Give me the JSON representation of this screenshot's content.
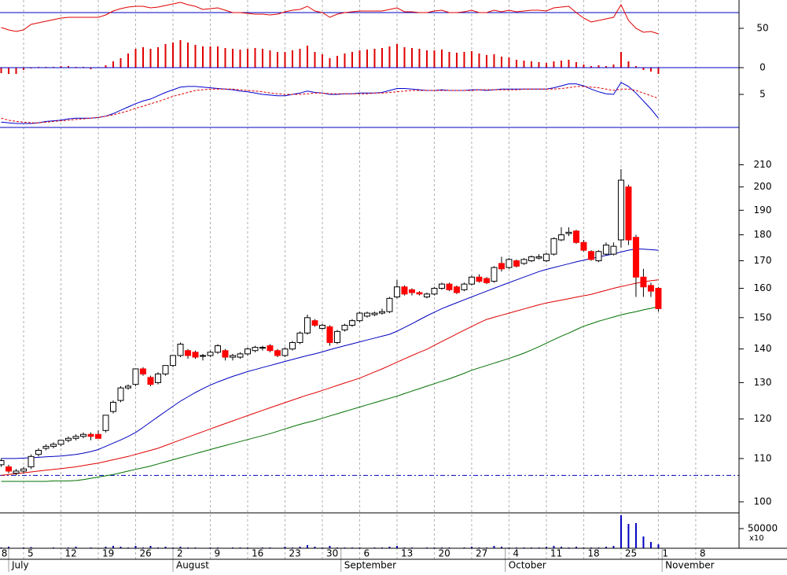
{
  "chart_data": [
    {
      "type": "oscillator",
      "ylim": [
        0,
        86
      ],
      "yticks": [
        0,
        50
      ],
      "reference_line": 70,
      "line_color": "#e00000",
      "bar_color": "#e00000",
      "ref_color": "#0000c0",
      "line": [
        51,
        48,
        46,
        48,
        55,
        57,
        59,
        61,
        63,
        64,
        64,
        64,
        64,
        64,
        67,
        72,
        75,
        77,
        78,
        78,
        76,
        77,
        79,
        81,
        83,
        80,
        78,
        74,
        75,
        76,
        73,
        70,
        70,
        69,
        68,
        68,
        67,
        68,
        71,
        73,
        74,
        78,
        72,
        70,
        64,
        68,
        70,
        71,
        72,
        72,
        72,
        72,
        74,
        76,
        71,
        71,
        70,
        70,
        72,
        73,
        70,
        70,
        71,
        73,
        70,
        70,
        73,
        71,
        73,
        71,
        72,
        73,
        73,
        72,
        76,
        77,
        78,
        70,
        63,
        58,
        60,
        62,
        64,
        80,
        60,
        50,
        45,
        46,
        43
      ],
      "bars": [
        -7,
        -8,
        -8,
        -3,
        -1,
        1,
        1,
        1,
        2,
        2,
        1,
        1,
        -2,
        0,
        3,
        8,
        12,
        18,
        24,
        26,
        24,
        26,
        30,
        32,
        35,
        32,
        29,
        27,
        27,
        27,
        25,
        24,
        23,
        24,
        25,
        24,
        22,
        20,
        20,
        22,
        24,
        28,
        20,
        17,
        12,
        15,
        18,
        20,
        22,
        23,
        24,
        25,
        27,
        30,
        26,
        25,
        24,
        22,
        22,
        23,
        20,
        19,
        20,
        21,
        18,
        16,
        17,
        14,
        13,
        10,
        9,
        8,
        7,
        6,
        8,
        9,
        10,
        7,
        4,
        2,
        3,
        2,
        4,
        20,
        8,
        2,
        -3,
        -5,
        -8
      ]
    },
    {
      "type": "macd",
      "ylim": [
        0,
        9.05
      ],
      "yticks": [
        5
      ],
      "series": [
        {
          "color": "#0000d0",
          "dashed": false,
          "values": [
            0.8,
            0.7,
            0.6,
            0.6,
            0.6,
            0.7,
            0.9,
            1.0,
            1.1,
            1.3,
            1.4,
            1.4,
            1.4,
            1.5,
            1.7,
            2.1,
            2.6,
            3.1,
            3.6,
            4.0,
            4.3,
            4.8,
            5.3,
            5.7,
            6.1,
            6.2,
            6.2,
            6.1,
            6.0,
            5.9,
            5.8,
            5.7,
            5.5,
            5.4,
            5.2,
            5.0,
            4.9,
            4.8,
            4.8,
            5.0,
            5.2,
            5.5,
            5.3,
            5.2,
            5.0,
            5.0,
            5.1,
            5.1,
            5.2,
            5.2,
            5.2,
            5.3,
            5.6,
            5.9,
            5.9,
            5.8,
            5.7,
            5.6,
            5.6,
            5.7,
            5.6,
            5.6,
            5.6,
            5.7,
            5.7,
            5.6,
            5.7,
            5.8,
            5.8,
            5.8,
            5.8,
            5.8,
            5.8,
            5.8,
            6.0,
            6.3,
            6.6,
            6.6,
            6.3,
            5.8,
            5.4,
            5.1,
            5.0,
            6.8,
            6.2,
            5.2,
            4.0,
            2.8,
            1.4
          ]
        },
        {
          "color": "#e00000",
          "dashed": true,
          "values": [
            1.4,
            1.1,
            0.9,
            0.8,
            0.7,
            0.7,
            0.8,
            0.9,
            1.0,
            1.1,
            1.2,
            1.3,
            1.4,
            1.5,
            1.7,
            1.9,
            2.2,
            2.5,
            2.9,
            3.2,
            3.6,
            3.9,
            4.3,
            4.7,
            5.0,
            5.3,
            5.6,
            5.7,
            5.8,
            5.8,
            5.8,
            5.8,
            5.7,
            5.6,
            5.5,
            5.4,
            5.2,
            5.1,
            5.0,
            5.0,
            5.0,
            5.1,
            5.2,
            5.2,
            5.1,
            5.1,
            5.1,
            5.1,
            5.1,
            5.1,
            5.2,
            5.2,
            5.3,
            5.4,
            5.5,
            5.6,
            5.6,
            5.6,
            5.6,
            5.6,
            5.6,
            5.6,
            5.6,
            5.6,
            5.7,
            5.7,
            5.7,
            5.7,
            5.7,
            5.7,
            5.8,
            5.8,
            5.8,
            5.8,
            5.8,
            5.9,
            6.0,
            6.2,
            6.2,
            6.1,
            6.0,
            5.8,
            5.6,
            5.8,
            5.8,
            5.6,
            5.2,
            4.8,
            4.4
          ]
        }
      ]
    },
    {
      "type": "candlestick",
      "log_scale": true,
      "ylim": [
        97.6,
        228
      ],
      "yticks": [
        100,
        110,
        120,
        130,
        140,
        150,
        160,
        170,
        180,
        190,
        200,
        210
      ],
      "xlim": [
        -0.16,
        98.8
      ],
      "xticks": [
        {
          "value": -0.5,
          "label": "8"
        },
        {
          "value": 3,
          "label": "5"
        },
        {
          "value": 8,
          "label": "12"
        },
        {
          "value": 13,
          "label": "19"
        },
        {
          "value": 18,
          "label": "26"
        },
        {
          "value": 23,
          "label": "2"
        },
        {
          "value": 28,
          "label": "9"
        },
        {
          "value": 33,
          "label": "16"
        },
        {
          "value": 38,
          "label": "23"
        },
        {
          "value": 43,
          "label": "30"
        },
        {
          "value": 48,
          "label": "6"
        },
        {
          "value": 53,
          "label": "13"
        },
        {
          "value": 58,
          "label": "20"
        },
        {
          "value": 63,
          "label": "27"
        },
        {
          "value": 68,
          "label": "4"
        },
        {
          "value": 73,
          "label": "11"
        },
        {
          "value": 78,
          "label": "18"
        },
        {
          "value": 83,
          "label": "25"
        },
        {
          "value": 88,
          "label": "1"
        },
        {
          "value": 93,
          "label": "8"
        }
      ],
      "month_ticks": [
        {
          "value": 1,
          "label": "July"
        },
        {
          "value": 23,
          "label": "August"
        },
        {
          "value": 45.5,
          "label": "September"
        },
        {
          "value": 67.5,
          "label": "October"
        },
        {
          "value": 88.5,
          "label": "November"
        }
      ],
      "grid": true,
      "up_color": "#ffffff",
      "down_color": "#ff0000",
      "reference_line": 106,
      "ref_color": "#0000c0",
      "open": [
        108.5,
        108,
        106.5,
        107,
        108,
        111,
        112.5,
        113,
        113.5,
        114.5,
        115,
        115.5,
        116,
        116,
        117,
        122,
        125,
        128.5,
        129.5,
        134,
        131.5,
        130,
        132.5,
        135,
        138,
        139.5,
        139,
        138,
        138,
        139,
        139.5,
        137.5,
        137.5,
        138.5,
        139.5,
        140.5,
        141,
        139.5,
        138,
        140,
        142,
        145,
        149,
        146.5,
        147,
        142,
        146,
        147.5,
        149,
        150.5,
        151,
        151.5,
        152,
        157,
        160.5,
        159.5,
        158.5,
        157,
        158,
        160,
        161.5,
        160.5,
        159.5,
        161.5,
        164,
        163.5,
        162.5,
        169,
        167.5,
        170,
        169,
        170,
        171,
        170,
        172.5,
        178,
        180.5,
        181.5,
        177,
        173.5,
        170,
        172.5,
        172.5,
        178,
        200,
        179,
        164,
        161,
        160
      ],
      "high": [
        110,
        108.5,
        107.5,
        108,
        111,
        112.5,
        113.5,
        114,
        114.5,
        115.5,
        116,
        116.5,
        116.5,
        117,
        121,
        125,
        129,
        129.5,
        134,
        134.5,
        132,
        133,
        135,
        138,
        142,
        140,
        139.5,
        138.5,
        139.5,
        141.5,
        140,
        138.5,
        139,
        140.5,
        141,
        141,
        141.5,
        140,
        140.5,
        142.5,
        145.5,
        151,
        149.5,
        148,
        147.5,
        146,
        148,
        149.5,
        152,
        152,
        152,
        153,
        157,
        163,
        161,
        160,
        159,
        158.5,
        160.5,
        162,
        162,
        161,
        162,
        164.5,
        165,
        164,
        168,
        171.5,
        171,
        170.5,
        171,
        172,
        172.5,
        173,
        179,
        183,
        183,
        182,
        178,
        174,
        174,
        177,
        177,
        208,
        201,
        180,
        167,
        162,
        160.5
      ],
      "low": [
        108,
        106.5,
        106,
        106.5,
        107.5,
        110.5,
        112,
        112.5,
        113,
        114,
        114.5,
        115,
        114.5,
        115,
        116.5,
        121.5,
        124.5,
        128,
        129,
        132,
        129,
        129.5,
        132,
        134.5,
        137.5,
        137,
        137,
        136.5,
        137.5,
        138.5,
        136.5,
        136.5,
        137,
        138,
        139,
        139.5,
        139,
        137.5,
        137.5,
        139.5,
        141.5,
        144.5,
        147,
        146,
        141,
        141.5,
        145.5,
        147,
        148.5,
        150,
        150.5,
        151,
        151.5,
        156.5,
        157.5,
        157.5,
        157.5,
        156.5,
        157.5,
        159.5,
        159,
        158,
        159,
        161,
        162,
        161.5,
        162,
        166,
        167,
        167.5,
        168.5,
        169.5,
        170.5,
        169.5,
        172,
        177.5,
        179.5,
        176.5,
        173.5,
        170,
        169.5,
        172,
        172,
        175,
        176,
        157,
        157,
        157,
        152
      ],
      "close": [
        109.5,
        107,
        107,
        107.5,
        110.5,
        112,
        113,
        113.5,
        114.5,
        115,
        115.5,
        116,
        115.5,
        115,
        121,
        124.5,
        128.5,
        129,
        134,
        132.5,
        129.5,
        132.5,
        135,
        138,
        141.5,
        138,
        137.5,
        138,
        139,
        141,
        137.5,
        138,
        138.5,
        140,
        140.5,
        140.5,
        139.5,
        138,
        140,
        142,
        145,
        150,
        147.5,
        147.5,
        142,
        145.5,
        147.5,
        149,
        151.5,
        151.5,
        151.5,
        152,
        156.5,
        160.5,
        158,
        158.5,
        158,
        158,
        160,
        161.5,
        159.5,
        158.5,
        161.5,
        164,
        162.5,
        162,
        167.5,
        167,
        170.5,
        168,
        170.5,
        171.5,
        171.5,
        172.5,
        178.5,
        180,
        181,
        177,
        174,
        170.5,
        173.5,
        176,
        175.5,
        203,
        178,
        164,
        160.5,
        159,
        153
      ],
      "moving_averages": [
        {
          "color": "#0000c0",
          "values": [
            110.0,
            110.0,
            110.0,
            110.1,
            110.2,
            110.3,
            110.4,
            110.5,
            110.6,
            110.8,
            111.0,
            111.3,
            111.7,
            112.2,
            113.0,
            113.8,
            114.6,
            115.5,
            116.5,
            117.8,
            119.2,
            120.6,
            122.0,
            123.4,
            124.8,
            126.0,
            127.2,
            128.3,
            129.3,
            130.2,
            131.0,
            131.8,
            132.5,
            133.2,
            133.8,
            134.4,
            135.0,
            135.6,
            136.2,
            136.8,
            137.4,
            138.0,
            138.5,
            139.1,
            139.8,
            140.4,
            141.0,
            141.6,
            142.2,
            142.8,
            143.4,
            144.0,
            144.6,
            145.6,
            146.8,
            148.0,
            149.3,
            150.6,
            151.8,
            153.0,
            154.0,
            155.0,
            156.0,
            157.0,
            158.0,
            159.0,
            160.0,
            161.0,
            162.0,
            163.0,
            164.0,
            165.0,
            166.0,
            166.8,
            167.5,
            168.2,
            168.9,
            169.6,
            170.2,
            170.8,
            171.5,
            172.0,
            172.6,
            173.3,
            174.0,
            174.5,
            174.4,
            174.2,
            174.0
          ]
        },
        {
          "color": "#e00000",
          "values": [
            106.0,
            106.2,
            106.4,
            106.6,
            106.8,
            107.0,
            107.2,
            107.4,
            107.6,
            107.8,
            108.0,
            108.3,
            108.6,
            108.9,
            109.3,
            109.7,
            110.1,
            110.5,
            111.0,
            111.5,
            112.0,
            112.5,
            113.2,
            113.9,
            114.6,
            115.3,
            116.0,
            116.7,
            117.4,
            118.1,
            118.8,
            119.5,
            120.2,
            120.9,
            121.6,
            122.3,
            123.0,
            123.7,
            124.4,
            125.1,
            125.8,
            126.5,
            127.1,
            127.8,
            128.5,
            129.2,
            129.9,
            130.6,
            131.3,
            132.2,
            133.1,
            134.0,
            135.0,
            136.0,
            137.0,
            138.0,
            139.0,
            139.9,
            141.1,
            142.3,
            143.5,
            144.7,
            145.9,
            147.1,
            148.3,
            149.4,
            150.1,
            150.8,
            151.5,
            152.2,
            152.9,
            153.6,
            154.3,
            154.9,
            155.4,
            155.9,
            156.4,
            156.9,
            157.4,
            157.9,
            158.6,
            159.3,
            160.0,
            160.6,
            161.2,
            161.8,
            162.3,
            162.7,
            163.0
          ]
        },
        {
          "color": "#007000",
          "values": [
            104.6,
            104.6,
            104.6,
            104.6,
            104.6,
            104.6,
            104.6,
            104.7,
            104.7,
            104.7,
            104.8,
            105.0,
            105.3,
            105.6,
            105.9,
            106.2,
            106.6,
            107.0,
            107.4,
            107.8,
            108.2,
            108.7,
            109.2,
            109.7,
            110.2,
            110.7,
            111.2,
            111.7,
            112.2,
            112.7,
            113.2,
            113.7,
            114.2,
            114.7,
            115.2,
            115.7,
            116.2,
            116.8,
            117.4,
            118.0,
            118.6,
            119.1,
            119.6,
            120.2,
            120.8,
            121.4,
            122.0,
            122.6,
            123.2,
            123.8,
            124.4,
            125.0,
            125.6,
            126.2,
            126.9,
            127.6,
            128.3,
            129.0,
            129.7,
            130.4,
            131.1,
            131.9,
            132.7,
            133.6,
            134.3,
            135.0,
            135.7,
            136.4,
            137.1,
            137.9,
            138.7,
            139.7,
            140.7,
            141.8,
            142.9,
            144.0,
            145.0,
            146.1,
            147.2,
            148.0,
            148.8,
            149.5,
            150.2,
            150.9,
            151.5,
            152.0,
            152.6,
            153.1,
            153.7
          ]
        }
      ]
    },
    {
      "type": "volume",
      "ylim": [
        0,
        90000
      ],
      "yticks": [
        50000
      ],
      "scale_label": "x10",
      "color": "#0000c0",
      "values": [
        2000,
        4000,
        0,
        2000,
        3000,
        0,
        0,
        2000,
        0,
        2000,
        4000,
        0,
        2000,
        0,
        4000,
        6000,
        4000,
        2000,
        6000,
        2000,
        6000,
        2000,
        4000,
        2000,
        4000,
        2000,
        2000,
        0,
        2000,
        2000,
        0,
        2000,
        2000,
        2000,
        0,
        2000,
        2000,
        0,
        4000,
        2000,
        4000,
        8000,
        4000,
        2000,
        6000,
        2000,
        2000,
        2000,
        2000,
        0,
        2000,
        2000,
        4000,
        6000,
        2000,
        2000,
        0,
        2000,
        2000,
        2000,
        2000,
        0,
        2000,
        4000,
        2000,
        2000,
        6000,
        4000,
        2000,
        2000,
        2000,
        2000,
        2000,
        4000,
        6000,
        4000,
        2000,
        4000,
        2000,
        2000,
        2000,
        4000,
        6000,
        84000,
        62000,
        64000,
        30000,
        16000,
        10000
      ]
    }
  ]
}
